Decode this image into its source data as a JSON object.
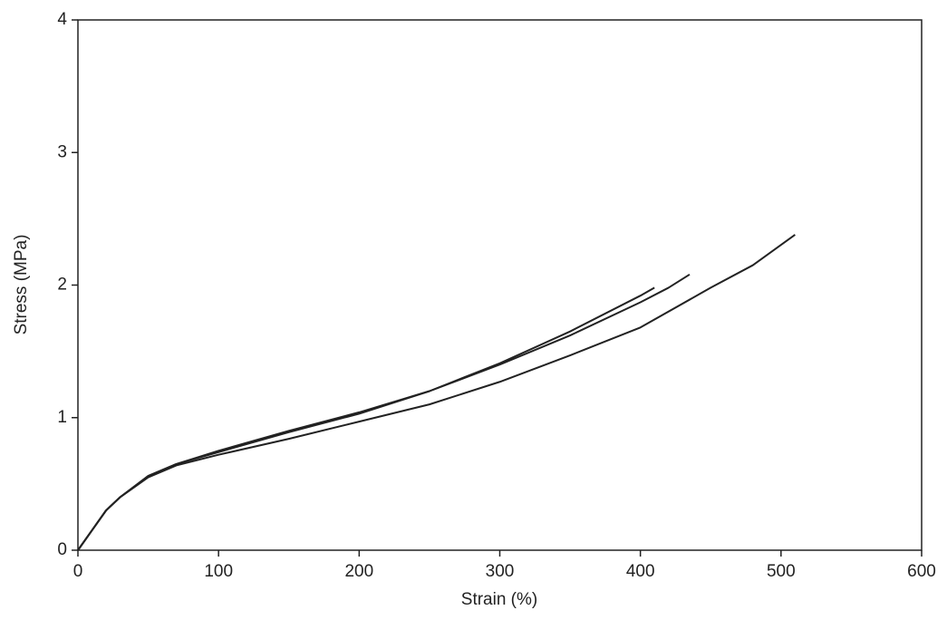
{
  "chart_data": {
    "type": "line",
    "xlabel": "Strain (%)",
    "ylabel": "Stress (MPa)",
    "xlim": [
      0,
      600
    ],
    "xticks": [
      0,
      100,
      200,
      300,
      400,
      500,
      600
    ],
    "ylim": [
      0,
      4
    ],
    "yticks": [
      0,
      1,
      2,
      3,
      4
    ],
    "series": [
      {
        "color": "#222222",
        "x": [
          0,
          10,
          20,
          30,
          50,
          70,
          100,
          150,
          200,
          250,
          300,
          350,
          400,
          450,
          480,
          510
        ],
        "values": [
          0,
          0.15,
          0.3,
          0.4,
          0.55,
          0.64,
          0.72,
          0.84,
          0.97,
          1.1,
          1.27,
          1.47,
          1.68,
          1.98,
          2.15,
          2.38
        ]
      },
      {
        "color": "#222222",
        "x": [
          0,
          10,
          20,
          30,
          50,
          70,
          100,
          150,
          200,
          250,
          300,
          350,
          400,
          420,
          435
        ],
        "values": [
          0,
          0.15,
          0.3,
          0.4,
          0.56,
          0.65,
          0.75,
          0.9,
          1.04,
          1.2,
          1.4,
          1.62,
          1.87,
          1.98,
          2.08
        ]
      },
      {
        "color": "#222222",
        "x": [
          0,
          10,
          20,
          30,
          50,
          70,
          100,
          150,
          200,
          250,
          300,
          350,
          400,
          410
        ],
        "values": [
          0,
          0.15,
          0.3,
          0.4,
          0.56,
          0.65,
          0.74,
          0.89,
          1.03,
          1.2,
          1.41,
          1.65,
          1.92,
          1.98
        ]
      }
    ]
  }
}
